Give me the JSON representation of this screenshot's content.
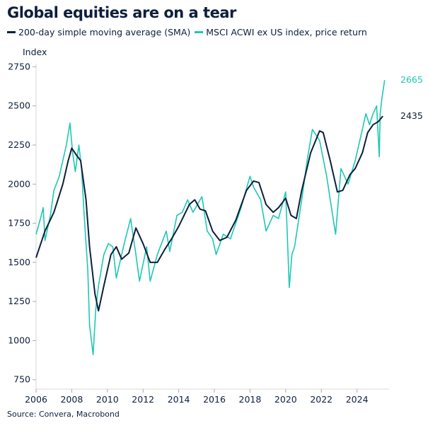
{
  "chart_data": {
    "type": "line",
    "title": "Global equities are on a tear",
    "ylabel": "Index",
    "xlabel": "",
    "source": "Source: Convera, Macrobond",
    "xlim": [
      2006,
      2025.8
    ],
    "ylim": [
      690,
      2770
    ],
    "x_ticks": [
      "2006",
      "2008",
      "2010",
      "2012",
      "2014",
      "2016",
      "2018",
      "2020",
      "2022",
      "2024"
    ],
    "y_ticks": [
      "750",
      "1000",
      "1250",
      "1500",
      "1750",
      "2000",
      "2250",
      "2500",
      "2750"
    ],
    "grid": false,
    "legend_position": "top-left",
    "series": [
      {
        "name": "200-day simple moving average (SMA)",
        "color": "#0d1f3c",
        "end_label": "2435",
        "x": [
          2006.0,
          2006.5,
          2007.0,
          2007.5,
          2007.8,
          2008.0,
          2008.3,
          2008.5,
          2008.8,
          2009.0,
          2009.3,
          2009.5,
          2009.8,
          2010.2,
          2010.5,
          2010.8,
          2011.2,
          2011.6,
          2012.0,
          2012.4,
          2012.8,
          2013.2,
          2013.6,
          2014.0,
          2014.6,
          2014.9,
          2015.2,
          2015.5,
          2015.9,
          2016.3,
          2016.7,
          2017.2,
          2017.8,
          2018.2,
          2018.5,
          2018.9,
          2019.3,
          2019.6,
          2020.0,
          2020.3,
          2020.6,
          2020.9,
          2021.4,
          2021.9,
          2022.1,
          2022.5,
          2022.9,
          2023.2,
          2023.6,
          2023.9,
          2024.3,
          2024.6,
          2024.9,
          2025.2,
          2025.45
        ],
        "y": [
          1530,
          1700,
          1820,
          2000,
          2150,
          2230,
          2180,
          2150,
          1900,
          1600,
          1300,
          1190,
          1350,
          1550,
          1600,
          1520,
          1560,
          1720,
          1620,
          1500,
          1500,
          1580,
          1650,
          1730,
          1870,
          1900,
          1840,
          1830,
          1700,
          1640,
          1660,
          1770,
          1960,
          2020,
          2010,
          1870,
          1820,
          1850,
          1910,
          1800,
          1780,
          1960,
          2200,
          2340,
          2330,
          2150,
          1950,
          1960,
          2060,
          2100,
          2200,
          2330,
          2380,
          2400,
          2435
        ]
      },
      {
        "name": "MSCI ACWI ex US index, price return",
        "color": "#1ec8b4",
        "end_label": "2665",
        "x": [
          2006.0,
          2006.2,
          2006.4,
          2006.5,
          2006.8,
          2007.0,
          2007.3,
          2007.5,
          2007.7,
          2007.9,
          2008.05,
          2008.2,
          2008.4,
          2008.55,
          2008.7,
          2008.9,
          2009.0,
          2009.2,
          2009.35,
          2009.5,
          2009.8,
          2010.05,
          2010.3,
          2010.5,
          2010.9,
          2011.3,
          2011.6,
          2011.8,
          2012.2,
          2012.4,
          2012.8,
          2013.3,
          2013.5,
          2013.9,
          2014.2,
          2014.5,
          2014.8,
          2015.3,
          2015.6,
          2015.9,
          2016.1,
          2016.5,
          2016.9,
          2017.5,
          2018.0,
          2018.2,
          2018.6,
          2018.9,
          2019.3,
          2019.6,
          2020.0,
          2020.2,
          2020.35,
          2020.5,
          2020.9,
          2021.2,
          2021.5,
          2021.9,
          2022.3,
          2022.7,
          2022.8,
          2023.1,
          2023.5,
          2023.9,
          2024.2,
          2024.5,
          2024.7,
          2024.9,
          2025.1,
          2025.25,
          2025.3,
          2025.4,
          2025.55
        ],
        "y": [
          1680,
          1760,
          1850,
          1640,
          1800,
          1960,
          2050,
          2150,
          2250,
          2390,
          2200,
          2080,
          2250,
          2100,
          1800,
          1450,
          1100,
          910,
          1200,
          1350,
          1550,
          1620,
          1600,
          1400,
          1600,
          1780,
          1550,
          1380,
          1600,
          1380,
          1550,
          1700,
          1570,
          1800,
          1820,
          1900,
          1820,
          1920,
          1700,
          1650,
          1550,
          1680,
          1650,
          1850,
          2050,
          1980,
          1900,
          1700,
          1800,
          1780,
          1950,
          1340,
          1550,
          1600,
          1900,
          2150,
          2350,
          2280,
          2050,
          1750,
          1680,
          2100,
          2000,
          2150,
          2300,
          2450,
          2380,
          2450,
          2500,
          2175,
          2450,
          2550,
          2665
        ]
      }
    ]
  }
}
